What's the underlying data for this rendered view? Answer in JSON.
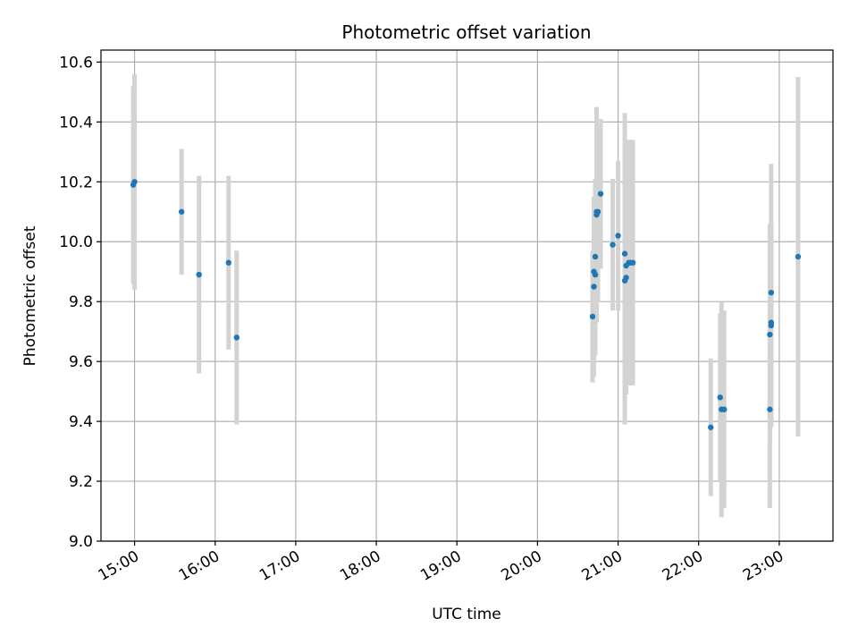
{
  "chart_data": {
    "type": "scatter",
    "title": "Photometric offset variation",
    "xlabel": "UTC time",
    "ylabel": "Photometric offset",
    "xlim": [
      "14:35",
      "23:40"
    ],
    "ylim": [
      9.0,
      10.64
    ],
    "grid": true,
    "x_tick_labels": [
      "15:00",
      "16:00",
      "17:00",
      "18:00",
      "19:00",
      "20:00",
      "21:00",
      "22:00",
      "23:00"
    ],
    "y_tick_labels": [
      "9.0",
      "9.2",
      "9.4",
      "9.6",
      "9.8",
      "10.0",
      "10.2",
      "10.4",
      "10.6"
    ],
    "y_ticks": [
      9.0,
      9.2,
      9.4,
      9.6,
      9.8,
      10.0,
      10.2,
      10.4,
      10.6
    ],
    "marker_color": "#1f77b4",
    "errorbar_color": "#d3d3d3",
    "points": [
      {
        "x": "14:59",
        "y": 10.19,
        "err": 0.33
      },
      {
        "x": "15:00",
        "y": 10.2,
        "err": 0.36
      },
      {
        "x": "15:35",
        "y": 10.1,
        "err": 0.21
      },
      {
        "x": "15:48",
        "y": 9.89,
        "err": 0.33
      },
      {
        "x": "16:10",
        "y": 9.93,
        "err": 0.29
      },
      {
        "x": "16:16",
        "y": 9.68,
        "err": 0.29
      },
      {
        "x": "20:41",
        "y": 9.75,
        "err": 0.22
      },
      {
        "x": "20:42",
        "y": 9.85,
        "err": 0.3
      },
      {
        "x": "20:42",
        "y": 9.9,
        "err": 0.25
      },
      {
        "x": "20:43",
        "y": 9.89,
        "err": 0.27
      },
      {
        "x": "20:43",
        "y": 9.95,
        "err": 0.26
      },
      {
        "x": "20:44",
        "y": 10.1,
        "err": 0.26
      },
      {
        "x": "20:44",
        "y": 10.09,
        "err": 0.36
      },
      {
        "x": "20:45",
        "y": 10.1,
        "err": 0.3
      },
      {
        "x": "20:47",
        "y": 10.16,
        "err": 0.25
      },
      {
        "x": "20:56",
        "y": 9.99,
        "err": 0.22
      },
      {
        "x": "21:00",
        "y": 10.02,
        "err": 0.25
      },
      {
        "x": "21:05",
        "y": 9.96,
        "err": 0.47
      },
      {
        "x": "21:05",
        "y": 9.87,
        "err": 0.48
      },
      {
        "x": "21:06",
        "y": 9.88,
        "err": 0.39
      },
      {
        "x": "21:06",
        "y": 9.92,
        "err": 0.4
      },
      {
        "x": "21:08",
        "y": 9.93,
        "err": 0.41
      },
      {
        "x": "21:09",
        "y": 9.93,
        "err": 0.41
      },
      {
        "x": "21:11",
        "y": 9.93,
        "err": 0.41
      },
      {
        "x": "22:09",
        "y": 9.38,
        "err": 0.23
      },
      {
        "x": "22:16",
        "y": 9.48,
        "err": 0.28
      },
      {
        "x": "22:17",
        "y": 9.44,
        "err": 0.36
      },
      {
        "x": "22:19",
        "y": 9.44,
        "err": 0.33
      },
      {
        "x": "22:53",
        "y": 9.44,
        "err": 0.33
      },
      {
        "x": "22:53",
        "y": 9.69,
        "err": 0.37
      },
      {
        "x": "22:54",
        "y": 9.73,
        "err": 0.34
      },
      {
        "x": "22:54",
        "y": 9.72,
        "err": 0.34
      },
      {
        "x": "22:54",
        "y": 9.83,
        "err": 0.43
      },
      {
        "x": "23:14",
        "y": 9.95,
        "err": 0.6
      }
    ]
  }
}
